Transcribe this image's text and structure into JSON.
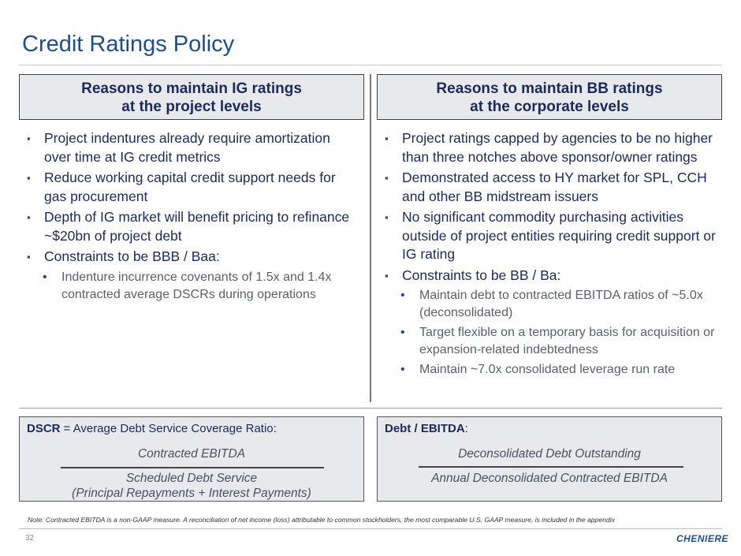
{
  "title": "Credit Ratings Policy",
  "columns": [
    {
      "heading_lines": [
        "Reasons to maintain IG ratings",
        "at the project levels"
      ],
      "bullets": [
        {
          "text": "Project indentures already require amortization over time at IG credit metrics",
          "sub": []
        },
        {
          "text": "Reduce working capital credit support needs for gas procurement",
          "sub": []
        },
        {
          "text": "Depth of IG market will benefit pricing to refinance ~$20bn of project debt",
          "sub": []
        },
        {
          "text": "Constraints to be BBB / Baa:",
          "sub": [
            "Indenture incurrence covenants of 1.5x and 1.4x contracted average DSCRs during operations"
          ]
        }
      ]
    },
    {
      "heading_lines": [
        "Reasons to maintain BB ratings",
        "at the corporate levels"
      ],
      "bullets": [
        {
          "text": "Project ratings capped by agencies to be no higher than three notches above sponsor/owner ratings",
          "sub": []
        },
        {
          "text": "Demonstrated access to HY market for SPL, CCH and other BB midstream issuers",
          "sub": []
        },
        {
          "text": "No significant commodity purchasing activities outside of project entities requiring credit support or IG rating",
          "sub": []
        },
        {
          "text": "Constraints to be BB / Ba:",
          "sub": [
            "Maintain debt to contracted EBITDA ratios of ~5.0x (deconsolidated)",
            "Target flexible on a temporary basis for acquisition or expansion-related indebtedness",
            "Maintain ~7.0x consolidated leverage run rate"
          ]
        }
      ]
    }
  ],
  "formulas": [
    {
      "term": "DSCR",
      "definition": "= Average Debt Service Coverage Ratio:",
      "numerator": "Contracted EBITDA",
      "denominator_lines": [
        "Scheduled Debt Service",
        "(Principal Repayments + Interest Payments)"
      ]
    },
    {
      "term": "Debt / EBITDA",
      "definition": ":",
      "numerator": "Deconsolidated Debt Outstanding",
      "denominator_lines": [
        "Annual Deconsolidated Contracted EBITDA"
      ]
    }
  ],
  "note": "Note: Contracted EBITDA is a non-GAAP measure. A reconciliation of net income (loss) attributable to common stockholders, the most comparable U.S. GAAP measure, is included in the appendix",
  "page_number": "32",
  "logo": "CHENIERE"
}
